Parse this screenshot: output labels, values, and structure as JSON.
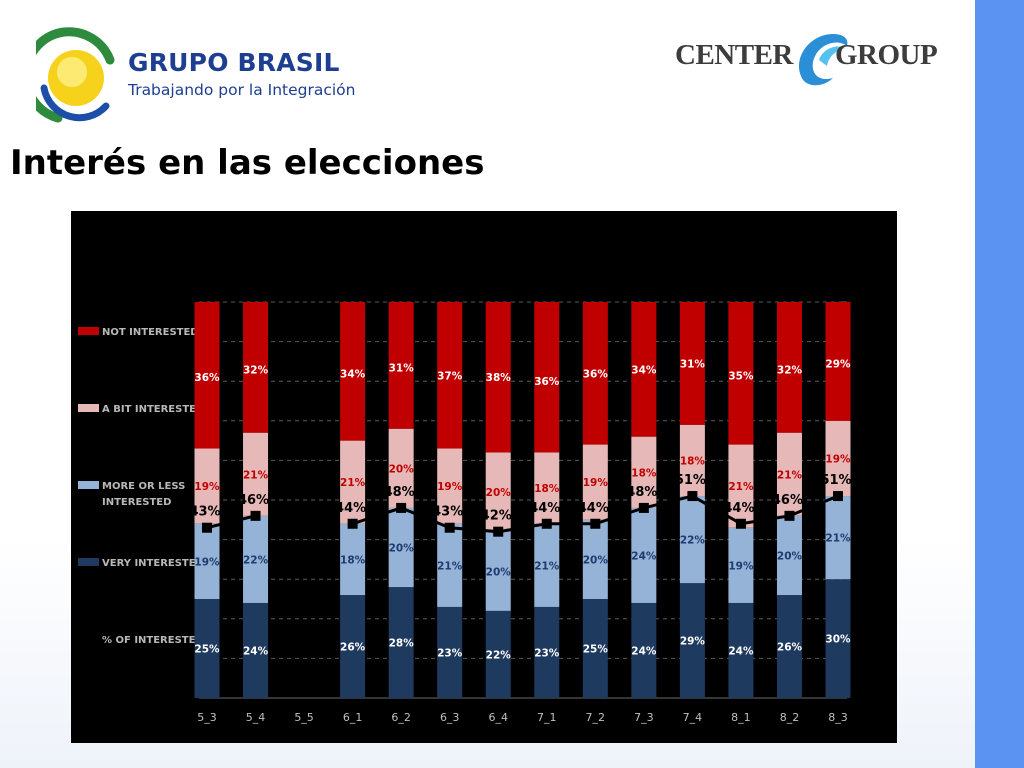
{
  "header": {
    "brand_name": "GRUPO BRASIL",
    "brand_tagline": "Trabajando por la Integración",
    "partner_left": "CENTER",
    "partner_right": "GROUP"
  },
  "page": {
    "title": "Interés en las elecciones"
  },
  "colors": {
    "not_interested": "#c00000",
    "a_bit_interested": "#e6b9b8",
    "more_or_less": "#95b3d7",
    "very_interested": "#1f3a5f",
    "line": "#000000",
    "accent_band": "#5b93f2",
    "brand_blue": "#1e3e91"
  },
  "chart_data": {
    "type": "bar",
    "stacked": true,
    "categories": [
      "5_3",
      "5_4",
      "5_5",
      "6_1",
      "6_2",
      "6_3",
      "6_4",
      "7_1",
      "7_2",
      "7_3",
      "7_4",
      "8_1",
      "8_2",
      "8_3"
    ],
    "series": [
      {
        "name": "VERY INTERESTED",
        "values": [
          25,
          24,
          null,
          26,
          28,
          23,
          22,
          23,
          25,
          24,
          29,
          24,
          26,
          30
        ]
      },
      {
        "name": "MORE OR LESS INTERESTED",
        "values": [
          19,
          22,
          null,
          18,
          20,
          21,
          20,
          21,
          20,
          24,
          22,
          19,
          20,
          21
        ]
      },
      {
        "name": "A BIT INTERESTED",
        "values": [
          19,
          21,
          null,
          21,
          20,
          19,
          20,
          18,
          19,
          18,
          18,
          21,
          21,
          19
        ]
      },
      {
        "name": "NOT INTERESTED",
        "values": [
          36,
          32,
          null,
          34,
          31,
          37,
          38,
          36,
          36,
          34,
          31,
          35,
          32,
          29
        ]
      }
    ],
    "line_series": {
      "name": "% OF INTERESTED",
      "values": [
        43,
        46,
        null,
        44,
        48,
        43,
        42,
        44,
        44,
        48,
        51,
        44,
        46,
        51
      ]
    },
    "legend": [
      {
        "label": "NOT INTERESTED",
        "color": "#c00000"
      },
      {
        "label": "A BIT INTERESTED",
        "color": "#e6b9b8"
      },
      {
        "label": "MORE OR LESS INTERESTED",
        "color": "#95b3d7"
      },
      {
        "label": "VERY INTERESTED",
        "color": "#1f3a5f"
      },
      {
        "label": "% OF INTERESTED",
        "color": "#000000"
      }
    ],
    "legend_position": "left",
    "ylim": [
      0,
      100
    ],
    "grid": true,
    "title": "",
    "xlabel": "",
    "ylabel": ""
  }
}
